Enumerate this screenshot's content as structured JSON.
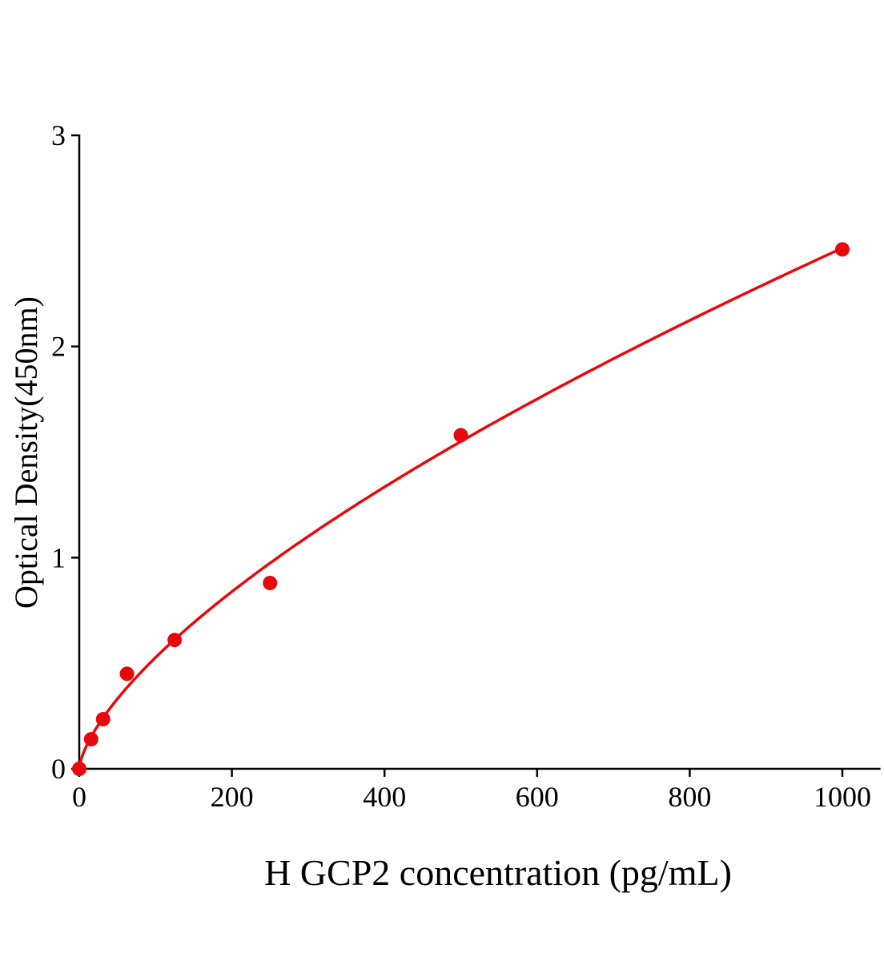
{
  "chart_data": {
    "type": "scatter",
    "title": "",
    "xlabel": "H GCP2 concentration (pg/mL)",
    "ylabel": "Optical Density(450nm)",
    "xlim": [
      0,
      1050
    ],
    "ylim": [
      0,
      3
    ],
    "xticks": [
      "0",
      "200",
      "400",
      "600",
      "800",
      "1000"
    ],
    "yticks": [
      "0",
      "1",
      "2",
      "3"
    ],
    "grid": false,
    "legend": "none",
    "color": "#e8080c",
    "series": [
      {
        "x": [
          0,
          15.6,
          31.25,
          62.5,
          125,
          250,
          500,
          1000
        ],
        "y": [
          0.0,
          0.14,
          0.235,
          0.45,
          0.61,
          0.88,
          1.58,
          2.46
        ]
      }
    ],
    "fit_line": "smooth curve"
  }
}
